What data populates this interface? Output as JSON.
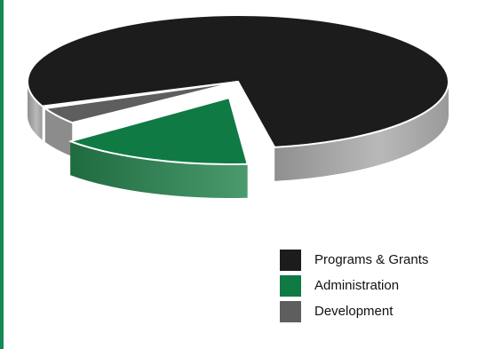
{
  "chart_data": {
    "type": "pie",
    "title": "",
    "three_d": true,
    "exploded_slice": "Administration",
    "legend_position": "bottom-right",
    "categories": [
      "Programs & Grants",
      "Administration",
      "Development"
    ],
    "values": [
      81,
      15,
      4
    ],
    "unit": "percent",
    "colors": {
      "Programs & Grants": "#1c1c1c",
      "Administration": "#0f7a44",
      "Development": "#5e5e5e"
    }
  },
  "theme": {
    "accent_rule": "#138a52",
    "side_gray": "#a8a8a8"
  },
  "legend": {
    "items": [
      {
        "label": "Programs & Grants",
        "color": "#1c1c1c"
      },
      {
        "label": "Administration",
        "color": "#0f7a44"
      },
      {
        "label": "Development",
        "color": "#5e5e5e"
      }
    ]
  }
}
